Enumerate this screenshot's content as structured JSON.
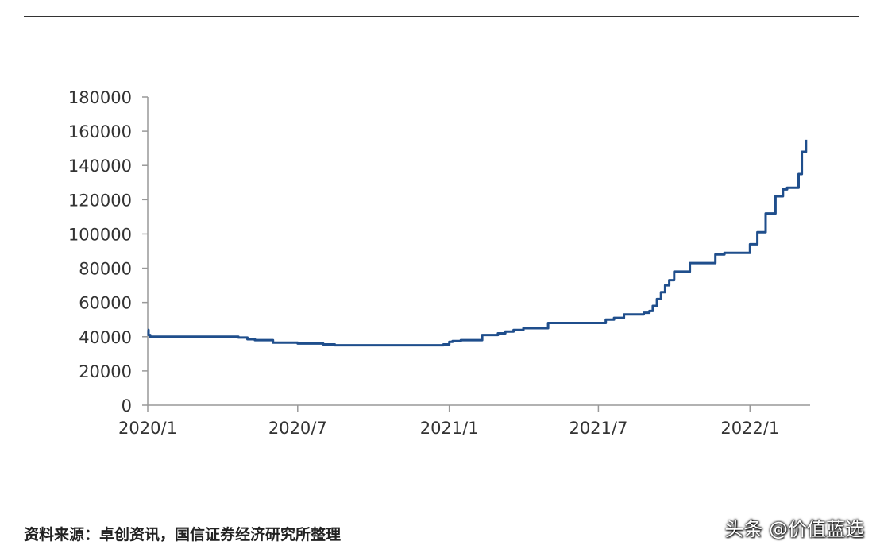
{
  "chart_data": {
    "type": "line",
    "title": "",
    "xlabel": "",
    "ylabel": "",
    "ylim": [
      0,
      180000
    ],
    "yticks": [
      0,
      20000,
      40000,
      60000,
      80000,
      100000,
      120000,
      140000,
      160000,
      180000
    ],
    "yticks_labels": [
      "0",
      "20000",
      "40000",
      "60000",
      "80000",
      "100000",
      "120000",
      "140000",
      "160000",
      "180000"
    ],
    "xlim": [
      "2020-01-01",
      "2022-03-15"
    ],
    "xticks": [
      "2020-01-01",
      "2020-07-01",
      "2021-01-01",
      "2021-07-01",
      "2022-01-01"
    ],
    "xticks_labels": [
      "2020/1",
      "2020/7",
      "2021/1",
      "2021/7",
      "2022/1"
    ],
    "grid": false,
    "legend": "none",
    "line_color": "#1f4e8c",
    "series": [
      {
        "x": [
          "2020-01-01",
          "2020-01-02",
          "2020-01-04",
          "2020-04-05",
          "2020-04-20",
          "2020-05-01",
          "2020-05-10",
          "2020-06-01",
          "2020-06-20",
          "2020-07-01",
          "2020-07-20",
          "2020-08-01",
          "2020-08-15",
          "2020-09-01",
          "2020-11-01",
          "2020-12-20",
          "2020-12-25",
          "2021-01-01",
          "2021-01-05",
          "2021-01-15",
          "2021-02-01",
          "2021-02-10",
          "2021-02-20",
          "2021-03-01",
          "2021-03-10",
          "2021-03-20",
          "2021-04-01",
          "2021-05-01",
          "2021-06-01",
          "2021-06-20",
          "2021-07-01",
          "2021-07-10",
          "2021-07-20",
          "2021-08-01",
          "2021-08-10",
          "2021-08-20",
          "2021-08-25",
          "2021-09-01",
          "2021-09-05",
          "2021-09-10",
          "2021-09-15",
          "2021-09-20",
          "2021-09-25",
          "2021-10-01",
          "2021-10-10",
          "2021-10-20",
          "2021-11-01",
          "2021-11-10",
          "2021-11-20",
          "2021-12-01",
          "2021-12-10",
          "2021-12-20",
          "2021-12-25",
          "2022-01-01",
          "2022-01-05",
          "2022-01-10",
          "2022-01-15",
          "2022-01-20",
          "2022-01-25",
          "2022-02-01",
          "2022-02-10",
          "2022-02-15",
          "2022-02-20",
          "2022-02-25",
          "2022-03-01",
          "2022-03-05",
          "2022-03-10"
        ],
        "y": [
          44000,
          41000,
          40000,
          40000,
          39500,
          38500,
          38000,
          36500,
          36500,
          36000,
          36000,
          35500,
          35000,
          35000,
          35000,
          35000,
          35500,
          37000,
          37500,
          38000,
          38000,
          41000,
          41000,
          42000,
          43000,
          44000,
          45000,
          48000,
          48000,
          48000,
          48000,
          50000,
          51000,
          53000,
          53000,
          53000,
          54000,
          55000,
          58000,
          62000,
          66000,
          70000,
          73000,
          78000,
          78000,
          83000,
          83000,
          83000,
          88000,
          89000,
          89000,
          89000,
          89000,
          94000,
          94000,
          101000,
          101000,
          112000,
          112000,
          122000,
          126000,
          127000,
          127000,
          127000,
          135000,
          148000,
          155000
        ]
      }
    ]
  },
  "source_text": "资料来源：卓创资讯，国信证券经济研究所整理",
  "watermark_text": "头条 @价值蓝选"
}
